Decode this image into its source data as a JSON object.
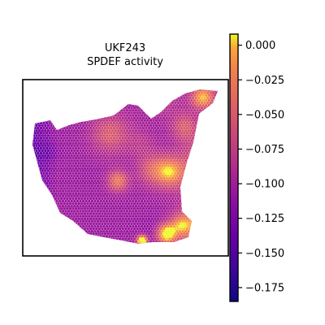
{
  "chart_data": {
    "type": "heatmap",
    "title_line1": "UKF243",
    "title_line2": "SPDEF activity",
    "xlabel": "",
    "ylabel": "",
    "colormap": "plasma",
    "colorbar": {
      "vmin": -0.185,
      "vmax": 0.008,
      "ticks": [
        0.0,
        -0.025,
        -0.05,
        -0.075,
        -0.1,
        -0.125,
        -0.15,
        -0.175
      ],
      "tick_labels": [
        "0.000",
        "−0.025",
        "−0.050",
        "−0.075",
        "−0.100",
        "−0.125",
        "−0.150",
        "−0.175"
      ]
    },
    "value_range": [
      -0.18,
      0.005
    ],
    "spatial_map_extent": {
      "x": [
        0,
        1
      ],
      "y": [
        0,
        1
      ]
    }
  }
}
